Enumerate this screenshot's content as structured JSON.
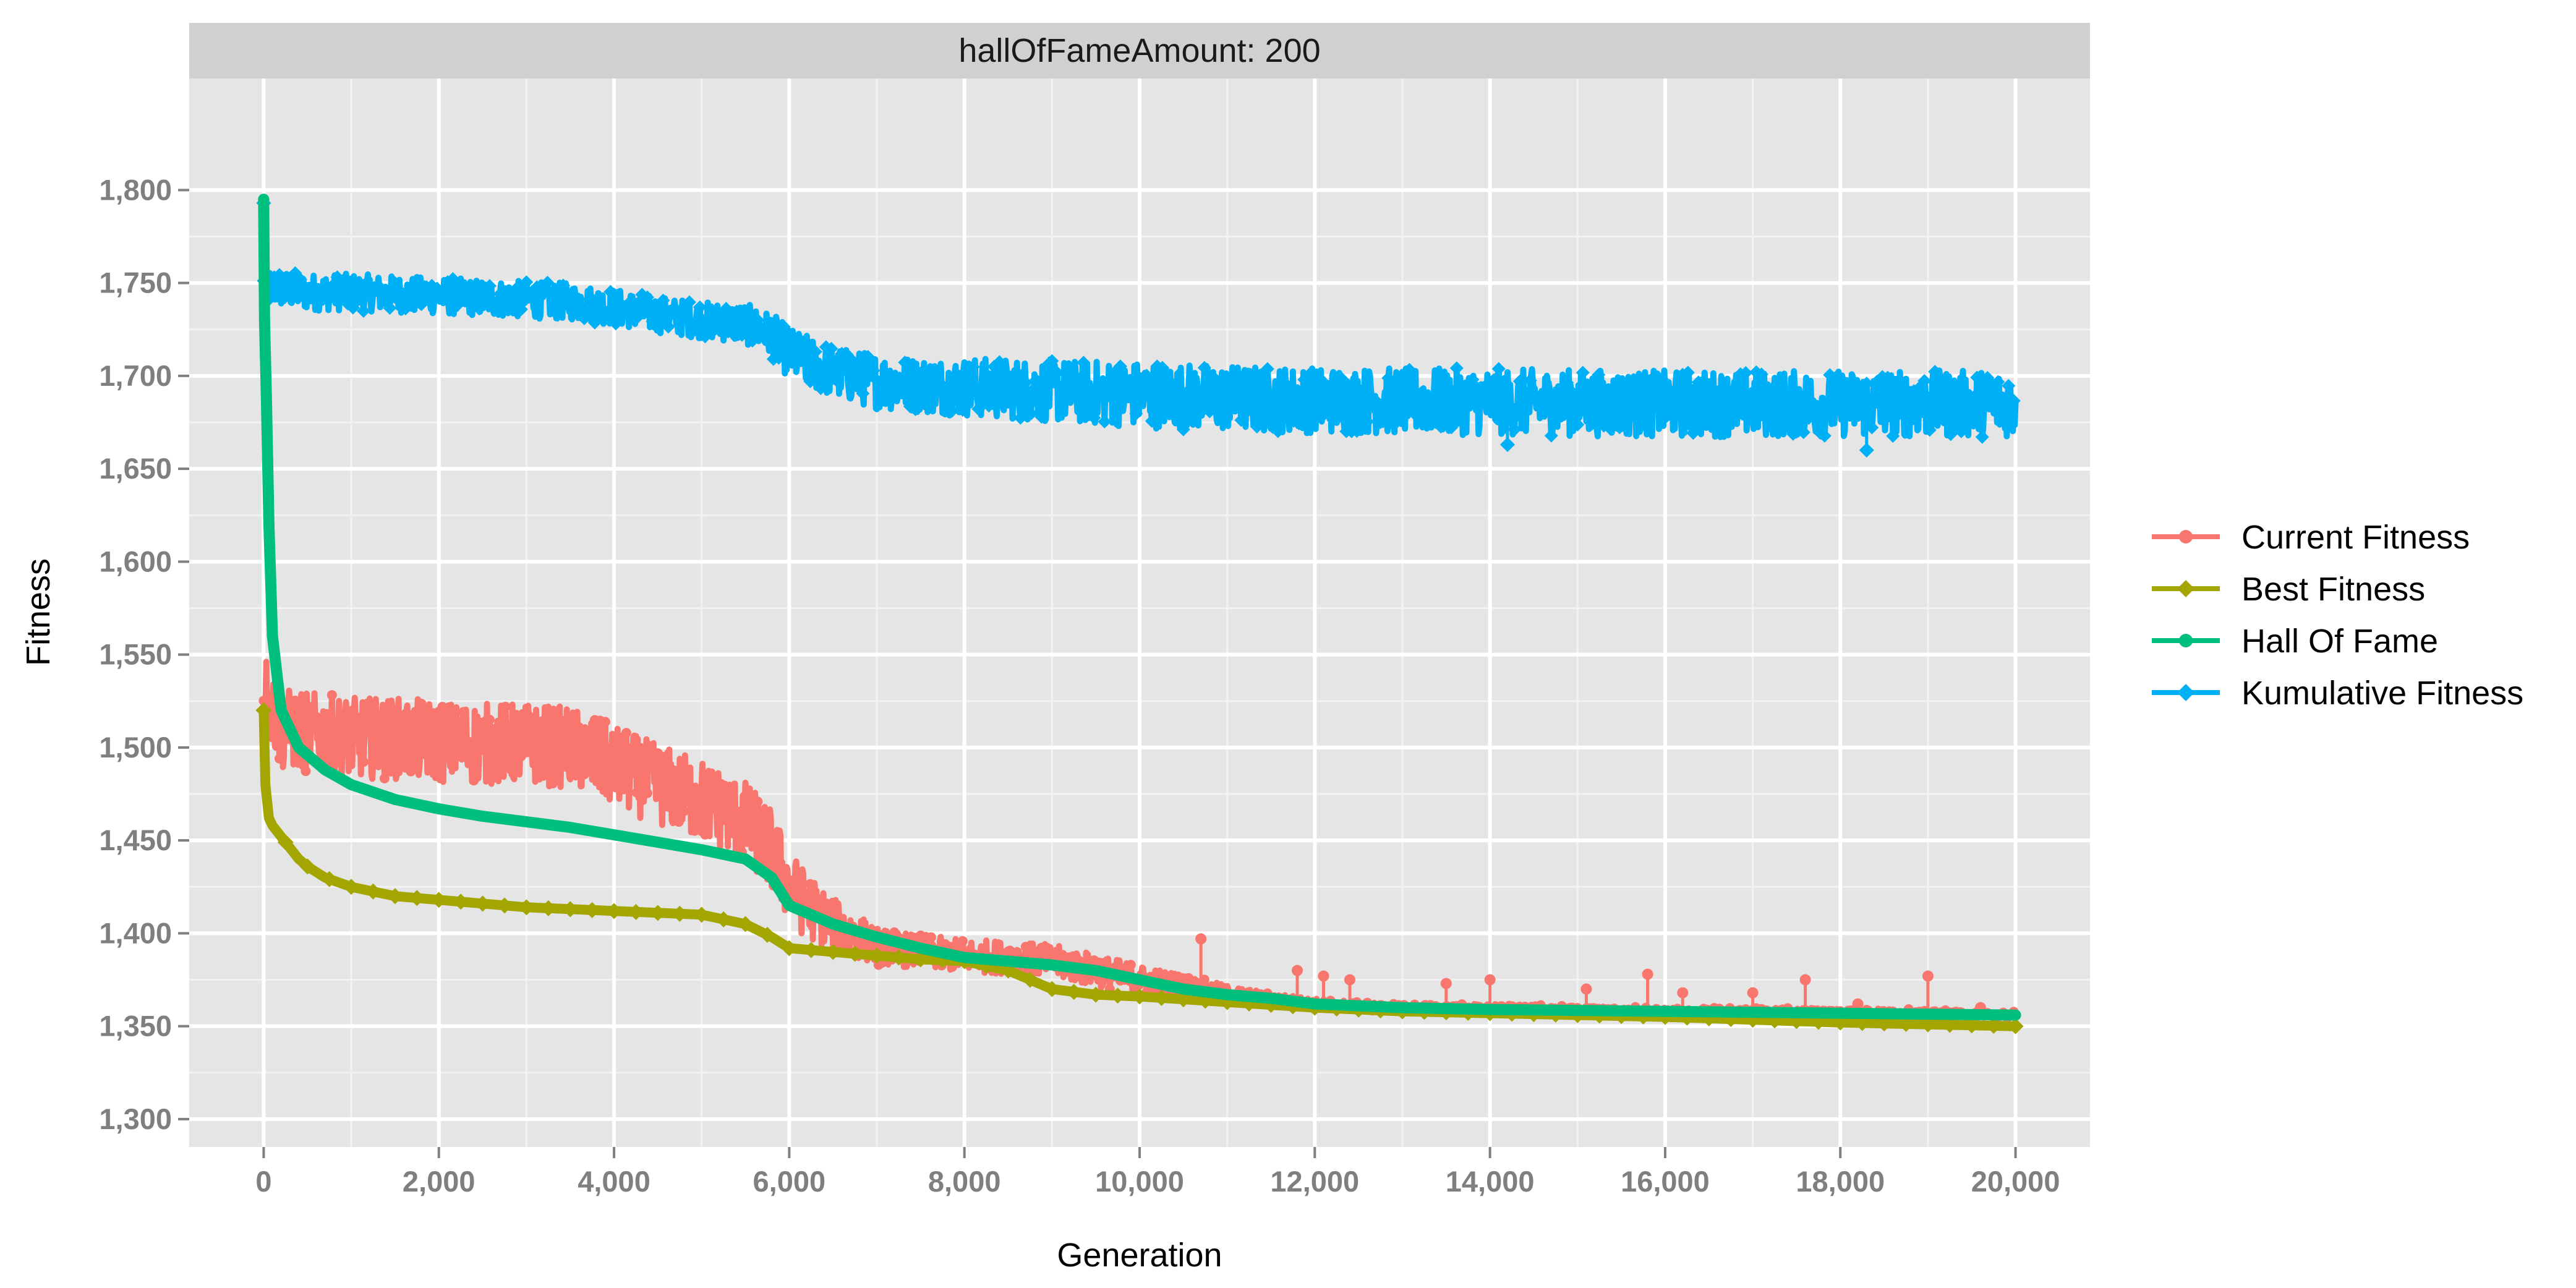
{
  "chart_data": {
    "type": "line",
    "panel_title": "hallOfFameAmount: 200",
    "xlabel": "Generation",
    "ylabel": "Fitness",
    "xlim": [
      -850,
      20850
    ],
    "ylim": [
      1285,
      1860
    ],
    "x_ticks": [
      0,
      2000,
      4000,
      6000,
      8000,
      10000,
      12000,
      14000,
      16000,
      18000,
      20000
    ],
    "x_tick_labels": [
      "0",
      "2,000",
      "4,000",
      "6,000",
      "8,000",
      "10,000",
      "12,000",
      "14,000",
      "16,000",
      "18,000",
      "20,000"
    ],
    "y_ticks": [
      1300,
      1350,
      1400,
      1450,
      1500,
      1550,
      1600,
      1650,
      1700,
      1750,
      1800
    ],
    "y_tick_labels": [
      "1,300",
      "1,350",
      "1,400",
      "1,450",
      "1,500",
      "1,550",
      "1,600",
      "1,650",
      "1,700",
      "1,750",
      "1,800"
    ],
    "grid": true,
    "background": "#e5e5e5",
    "strip_color": "#d0d0d0",
    "legend_position": "right",
    "series": [
      {
        "name": "Current Fitness",
        "color": "#f8766d",
        "marker": "circle",
        "style": "noisy",
        "x": [
          0,
          60,
          200,
          500,
          1000,
          1500,
          2000,
          2500,
          3000,
          3500,
          4000,
          4500,
          5000,
          5500,
          5800,
          6000,
          6200,
          6500,
          6800,
          7000,
          7500,
          8000,
          8500,
          9000,
          9500,
          10000,
          10500,
          11000,
          11500,
          12000,
          13000,
          14000,
          15000,
          16000,
          17000,
          18000,
          19000,
          20000
        ],
        "y": [
          1535,
          1525,
          1510,
          1508,
          1505,
          1505,
          1503,
          1502,
          1502,
          1500,
          1490,
          1480,
          1472,
          1460,
          1445,
          1425,
          1415,
          1405,
          1398,
          1393,
          1390,
          1388,
          1387,
          1385,
          1380,
          1375,
          1372,
          1368,
          1365,
          1362,
          1360,
          1360,
          1359,
          1358,
          1358,
          1358,
          1357,
          1356
        ],
        "noise_amp": [
          18,
          22,
          22,
          22,
          22,
          22,
          22,
          22,
          22,
          22,
          22,
          22,
          22,
          22,
          22,
          20,
          18,
          14,
          12,
          10,
          9,
          9,
          9,
          9,
          9,
          8,
          6,
          4,
          3,
          3,
          2,
          2,
          2,
          2,
          2,
          2,
          2,
          2
        ],
        "spikes": [
          [
            10700,
            1397
          ],
          [
            11800,
            1380
          ],
          [
            12100,
            1377
          ],
          [
            12400,
            1375
          ],
          [
            13500,
            1373
          ],
          [
            14000,
            1375
          ],
          [
            15100,
            1370
          ],
          [
            15800,
            1378
          ],
          [
            16200,
            1368
          ],
          [
            17000,
            1368
          ],
          [
            17600,
            1375
          ],
          [
            18200,
            1362
          ],
          [
            19000,
            1377
          ],
          [
            19600,
            1360
          ]
        ]
      },
      {
        "name": "Best Fitness",
        "color": "#a3a500",
        "marker": "diamond",
        "style": "line",
        "x": [
          0,
          20,
          60,
          100,
          200,
          300,
          400,
          500,
          700,
          1000,
          1500,
          2000,
          2500,
          3000,
          3500,
          4000,
          4500,
          5000,
          5500,
          5800,
          6000,
          6500,
          7000,
          7500,
          8000,
          8500,
          9000,
          9500,
          10000,
          11000,
          12000,
          13000,
          14000,
          16000,
          18000,
          20000
        ],
        "y": [
          1520,
          1480,
          1462,
          1458,
          1452,
          1446,
          1440,
          1436,
          1430,
          1425,
          1420,
          1418,
          1416,
          1414,
          1413,
          1412,
          1411,
          1410,
          1405,
          1398,
          1392,
          1390,
          1388,
          1386,
          1385,
          1380,
          1370,
          1367,
          1366,
          1363,
          1360,
          1358,
          1357,
          1355,
          1352,
          1350
        ]
      },
      {
        "name": "Hall Of Fame",
        "color": "#00bf7d",
        "marker": "circle",
        "style": "line",
        "x": [
          0,
          10,
          30,
          60,
          100,
          200,
          400,
          700,
          1000,
          1500,
          2000,
          2500,
          3000,
          3500,
          4000,
          4500,
          5000,
          5500,
          5800,
          6000,
          6500,
          7000,
          7500,
          8000,
          8500,
          9000,
          9500,
          10000,
          10500,
          11000,
          11500,
          12000,
          13000,
          14000,
          16000,
          18000,
          20000
        ],
        "y": [
          1795,
          1730,
          1690,
          1620,
          1560,
          1520,
          1500,
          1488,
          1480,
          1472,
          1467,
          1463,
          1460,
          1457,
          1453,
          1449,
          1445,
          1440,
          1430,
          1415,
          1405,
          1398,
          1392,
          1387,
          1385,
          1383,
          1380,
          1375,
          1370,
          1367,
          1365,
          1362,
          1360,
          1359,
          1358,
          1357,
          1356
        ]
      },
      {
        "name": "Kumulative Fitness",
        "color": "#00b0f6",
        "marker": "diamond",
        "style": "noisy",
        "x": [
          0,
          500,
          1000,
          2000,
          3000,
          3500,
          4000,
          4500,
          5000,
          5500,
          5800,
          6000,
          6500,
          7000,
          7500,
          8000,
          9000,
          10000,
          11000,
          12000,
          14000,
          16000,
          18000,
          20000
        ],
        "y": [
          1748,
          1745,
          1745,
          1743,
          1741,
          1740,
          1737,
          1733,
          1730,
          1728,
          1722,
          1712,
          1702,
          1697,
          1695,
          1694,
          1692,
          1690,
          1688,
          1687,
          1686,
          1685,
          1685,
          1685
        ],
        "noise_amp": [
          10,
          10,
          10,
          10,
          10,
          10,
          10,
          10,
          10,
          11,
          12,
          14,
          14,
          15,
          15,
          16,
          17,
          18,
          18,
          18,
          18,
          18,
          18,
          18
        ],
        "spikes": [
          [
            0,
            1793
          ],
          [
            18300,
            1660
          ],
          [
            14200,
            1663
          ]
        ]
      }
    ]
  }
}
